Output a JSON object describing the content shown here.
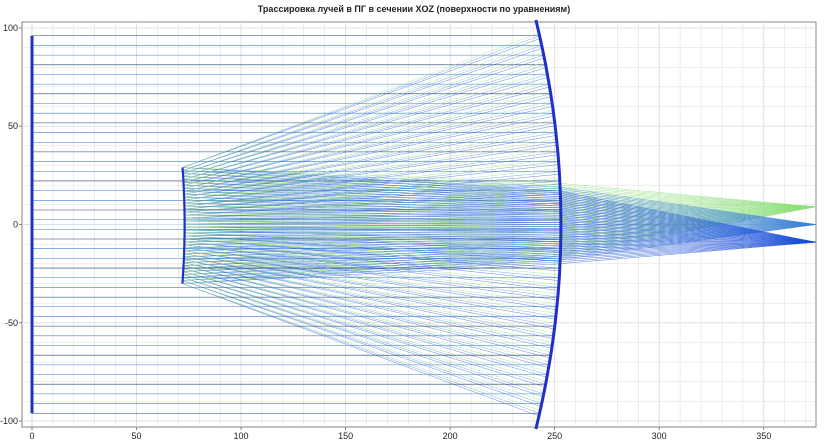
{
  "chart_data": {
    "type": "line",
    "title": "Трассировка лучей в ПГ в сечении XOZ (поверхности по уравнениям)",
    "xlabel": "",
    "ylabel": "",
    "xlim": [
      0,
      375
    ],
    "ylim": [
      -103,
      103
    ],
    "x_ticks": [
      0,
      50,
      100,
      150,
      200,
      250,
      300,
      350
    ],
    "y_ticks": [
      -100,
      -50,
      0,
      50,
      100
    ],
    "x_tick_labels": [
      "0",
      "50",
      "100",
      "150",
      "200",
      "250",
      "300",
      "350"
    ],
    "y_tick_labels": [
      "-100",
      "-50",
      "0",
      "50",
      "100"
    ],
    "grid": true,
    "entrance_plane": {
      "x": 0,
      "y_range": [
        -96,
        96
      ]
    },
    "primary_mirror": {
      "vertex_x": 253,
      "y_range": [
        -104,
        104
      ],
      "edge_x": 241
    },
    "secondary_mirror": {
      "vertex_x": 73,
      "y_range": [
        -30,
        29
      ],
      "edge_x": 72
    },
    "ray_count_per_field": 40,
    "fields": [
      {
        "name": "",
        "focus": [
          375,
          -9
        ],
        "color": "#1a4fd6"
      },
      {
        "name": "",
        "focus": [
          375,
          0
        ],
        "color": "#60c8a8"
      },
      {
        "name": "",
        "focus": [
          375,
          9
        ],
        "color": "#8ee07a"
      }
    ],
    "colors": {
      "surface": "#1f2fc8",
      "grid": "#dcdcdc",
      "axis": "#666666",
      "ray_blue": "#1a4fd6",
      "ray_green": "#8ee07a",
      "ray_dark": "#0a2a55"
    }
  }
}
